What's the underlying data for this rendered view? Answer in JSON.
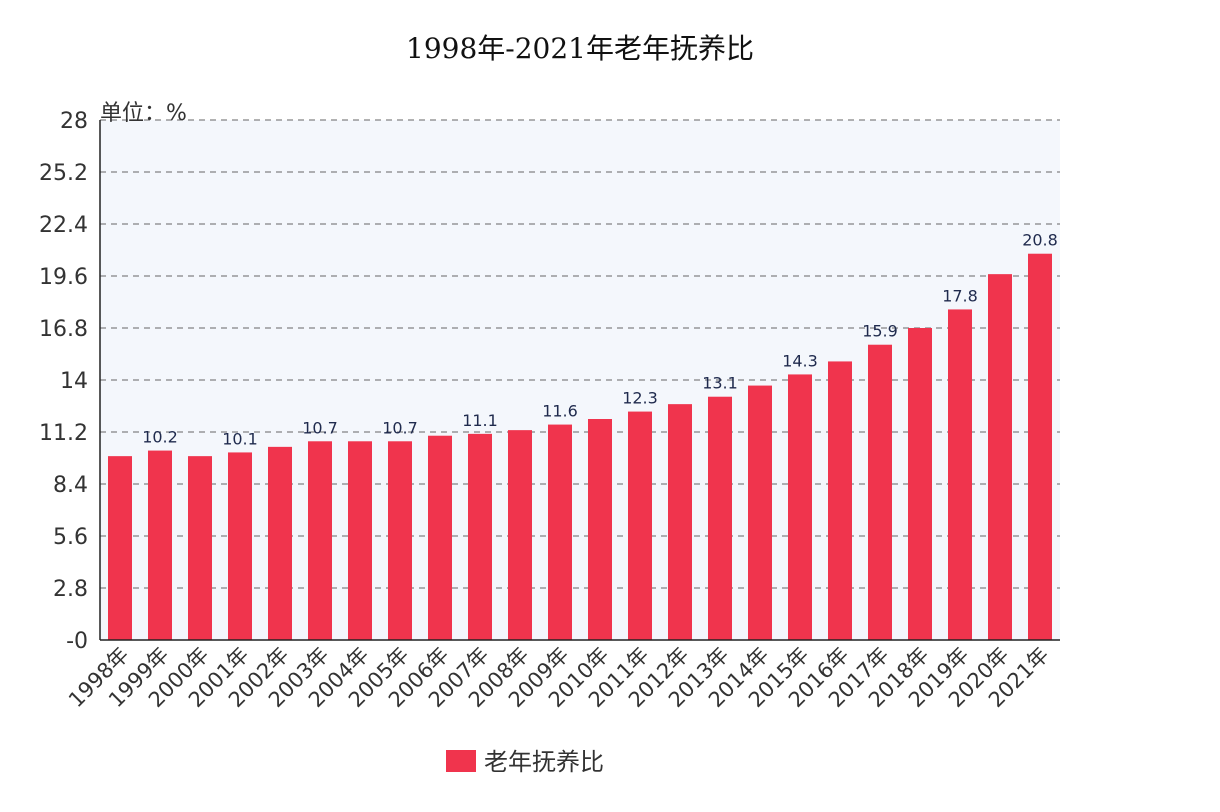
{
  "chart_data": {
    "type": "bar",
    "title": "1998年-2021年老年抚养比",
    "unit_label": "单位：%",
    "categories": [
      "1998年",
      "1999年",
      "2000年",
      "2001年",
      "2002年",
      "2003年",
      "2004年",
      "2005年",
      "2006年",
      "2007年",
      "2008年",
      "2009年",
      "2010年",
      "2011年",
      "2012年",
      "2013年",
      "2014年",
      "2015年",
      "2016年",
      "2017年",
      "2018年",
      "2019年",
      "2020年",
      "2021年"
    ],
    "series": [
      {
        "name": "老年抚养比",
        "color": "#f0344d",
        "values": [
          9.9,
          10.2,
          9.9,
          10.1,
          10.4,
          10.7,
          10.7,
          10.7,
          11.0,
          11.1,
          11.3,
          11.6,
          11.9,
          12.3,
          12.7,
          13.1,
          13.7,
          14.3,
          15.0,
          15.9,
          16.8,
          17.8,
          19.7,
          20.8
        ]
      }
    ],
    "data_labels": [
      {
        "index": 1,
        "text": "10.2"
      },
      {
        "index": 3,
        "text": "10.1"
      },
      {
        "index": 5,
        "text": "10.7"
      },
      {
        "index": 7,
        "text": "10.7"
      },
      {
        "index": 9,
        "text": "11.1"
      },
      {
        "index": 11,
        "text": "11.6"
      },
      {
        "index": 13,
        "text": "12.3"
      },
      {
        "index": 15,
        "text": "13.1"
      },
      {
        "index": 17,
        "text": "14.3"
      },
      {
        "index": 19,
        "text": "15.9"
      },
      {
        "index": 21,
        "text": "17.8"
      },
      {
        "index": 23,
        "text": "20.8"
      }
    ],
    "y_ticks": [
      "-0",
      "2.8",
      "5.6",
      "8.4",
      "11.2",
      "14",
      "16.8",
      "19.6",
      "22.4",
      "25.2",
      "28"
    ],
    "ylim": [
      0,
      28
    ],
    "grid": true,
    "legend_position": "bottom"
  }
}
